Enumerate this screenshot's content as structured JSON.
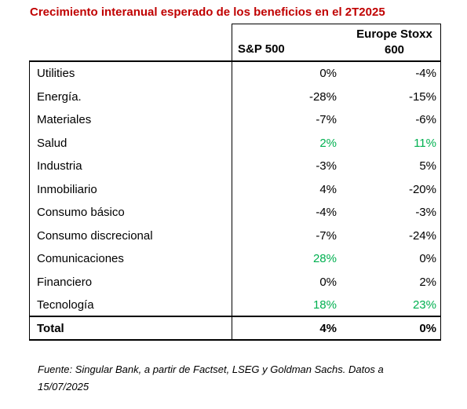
{
  "title": "Crecimiento interanual esperado de los beneficios en el 2T2025",
  "table": {
    "header": [
      "S&P 500",
      "Europe Stoxx 600"
    ],
    "rows": [
      [
        "Utilities",
        "0%",
        "-4%"
      ],
      [
        "Energía.",
        "-28%",
        "-15%"
      ],
      [
        "Materiales",
        "-7%",
        "-6%"
      ],
      [
        "Salud",
        "2%",
        "11%"
      ],
      [
        "Industria",
        "-3%",
        "5%"
      ],
      [
        "Inmobiliario",
        "4%",
        "-20%"
      ],
      [
        "Consumo básico",
        "-4%",
        "-3%"
      ],
      [
        "Consumo discrecional",
        "-7%",
        "-24%"
      ],
      [
        "Comunicaciones",
        "28%",
        "0%"
      ],
      [
        "Financiero",
        "0%",
        "2%"
      ],
      [
        "Tecnología",
        "18%",
        "23%"
      ]
    ],
    "total": [
      "Total",
      "4%",
      "0%"
    ],
    "highlight_color": "#00b050",
    "highlight": [
      [
        3,
        1
      ],
      [
        3,
        2
      ],
      [
        8,
        1
      ],
      [
        10,
        1
      ],
      [
        10,
        2
      ]
    ]
  },
  "source": "Fuente: Singular Bank, a partir de Factset, LSEG y Goldman Sachs. Datos a 15/07/2025"
}
